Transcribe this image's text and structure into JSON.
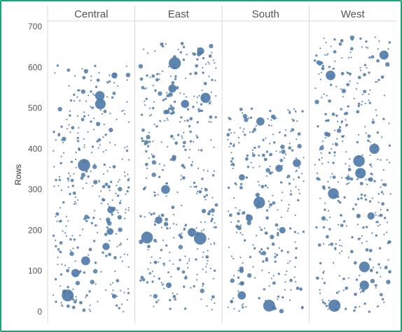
{
  "chart_data": {
    "type": "scatter",
    "categories": [
      "Central",
      "East",
      "South",
      "West"
    ],
    "ylabel": "Rows",
    "ylim": [
      0,
      700
    ],
    "yticks": [
      0,
      100,
      200,
      300,
      400,
      500,
      600,
      700
    ],
    "grid": false,
    "point_color": "#4e79a7",
    "series": [
      {
        "category": "Central",
        "row_count": 605,
        "y_max": 605
      },
      {
        "category": "East",
        "row_count": 660,
        "y_max": 660
      },
      {
        "category": "South",
        "row_count": 500,
        "y_max": 500
      },
      {
        "category": "West",
        "row_count": 675,
        "y_max": 675
      }
    ],
    "highlighted_points": [
      {
        "category": "Central",
        "y": 580
      },
      {
        "category": "Central",
        "y": 530
      },
      {
        "category": "Central",
        "y": 510
      },
      {
        "category": "Central",
        "y": 360
      },
      {
        "category": "Central",
        "y": 250
      },
      {
        "category": "Central",
        "y": 197
      },
      {
        "category": "Central",
        "y": 160
      },
      {
        "category": "Central",
        "y": 125
      },
      {
        "category": "Central",
        "y": 95
      },
      {
        "category": "Central",
        "y": 40
      },
      {
        "category": "East",
        "y": 640
      },
      {
        "category": "East",
        "y": 610
      },
      {
        "category": "East",
        "y": 548
      },
      {
        "category": "East",
        "y": 525
      },
      {
        "category": "East",
        "y": 510
      },
      {
        "category": "East",
        "y": 300
      },
      {
        "category": "East",
        "y": 225
      },
      {
        "category": "East",
        "y": 195
      },
      {
        "category": "East",
        "y": 182
      },
      {
        "category": "East",
        "y": 180
      },
      {
        "category": "East",
        "y": 65
      },
      {
        "category": "South",
        "y": 467
      },
      {
        "category": "South",
        "y": 365
      },
      {
        "category": "South",
        "y": 352
      },
      {
        "category": "South",
        "y": 330
      },
      {
        "category": "South",
        "y": 268
      },
      {
        "category": "South",
        "y": 230
      },
      {
        "category": "South",
        "y": 200
      },
      {
        "category": "South",
        "y": 40
      },
      {
        "category": "South",
        "y": 15
      },
      {
        "category": "West",
        "y": 630
      },
      {
        "category": "West",
        "y": 580
      },
      {
        "category": "West",
        "y": 400
      },
      {
        "category": "West",
        "y": 370
      },
      {
        "category": "West",
        "y": 340
      },
      {
        "category": "West",
        "y": 290
      },
      {
        "category": "West",
        "y": 235
      },
      {
        "category": "West",
        "y": 110
      },
      {
        "category": "West",
        "y": 65
      },
      {
        "category": "West",
        "y": 15
      }
    ]
  }
}
